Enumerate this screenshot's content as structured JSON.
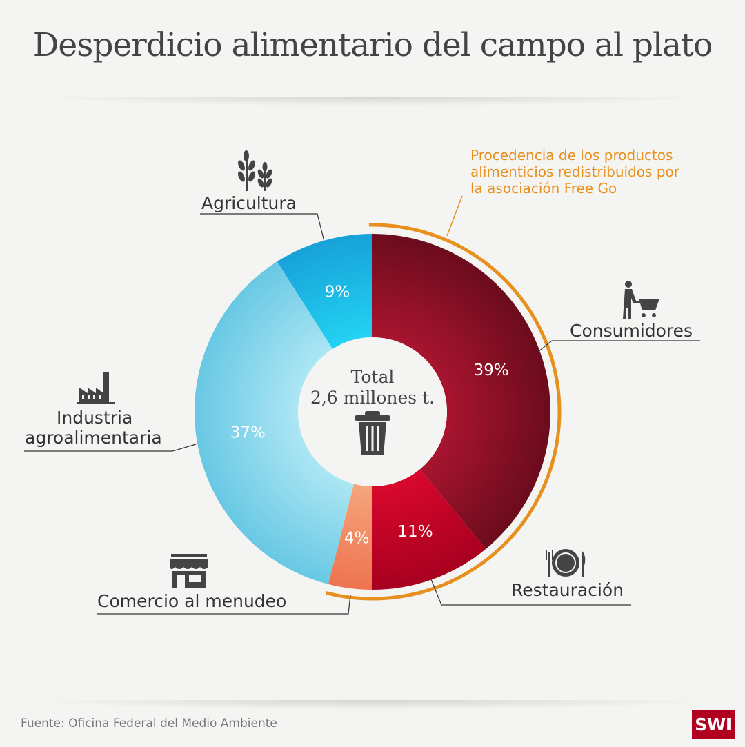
{
  "title": "Desperdicio alimentario del campo al plato",
  "note": [
    "Procedencia de los productos",
    "alimenticios redistribuidos por",
    "la asociación Free Go"
  ],
  "source": "Fuente: Oficina Federal del Medio Ambiente",
  "logo": "SWI",
  "chart_data": {
    "type": "pie",
    "variant": "donut",
    "title": "Desperdicio alimentario del campo al plato",
    "center_label": [
      "Total",
      "2,6 millones t."
    ],
    "start": "top, clockwise",
    "slices": [
      {
        "label": "Consumidores",
        "value": 39,
        "display": "39%",
        "color_outer": "#6b0c1d",
        "color_inner": "#a8142f",
        "icon": "shopping-cart-person-icon"
      },
      {
        "label": "Restauración",
        "value": 11,
        "display": "11%",
        "color_outer": "#a80020",
        "color_inner": "#d8082c",
        "icon": "plate-cutlery-icon"
      },
      {
        "label": "Comercio al menudeo",
        "value": 4,
        "display": "4%",
        "color_outer": "#ee7350",
        "color_inner": "#f6a57c",
        "icon": "storefront-icon"
      },
      {
        "label": "Industria agroalimentaria",
        "label_lines": [
          "Industria",
          "agroalimentaria"
        ],
        "value": 37,
        "display": "37%",
        "color_outer": "#68c8e4",
        "color_inner": "#ace6f4",
        "icon": "factory-icon"
      },
      {
        "label": "Agricultura",
        "value": 9,
        "display": "9%",
        "color_outer": "#17a2d9",
        "color_inner": "#23d2f2",
        "icon": "wheat-icon"
      }
    ],
    "highlight_arc": {
      "label": "Procedencia de los productos alimenticios redistribuidos por la asociación Free Go",
      "covers": [
        "Consumidores",
        "Restauración",
        "Comercio al menudeo"
      ],
      "value": 54,
      "color": "#e8901e"
    }
  }
}
